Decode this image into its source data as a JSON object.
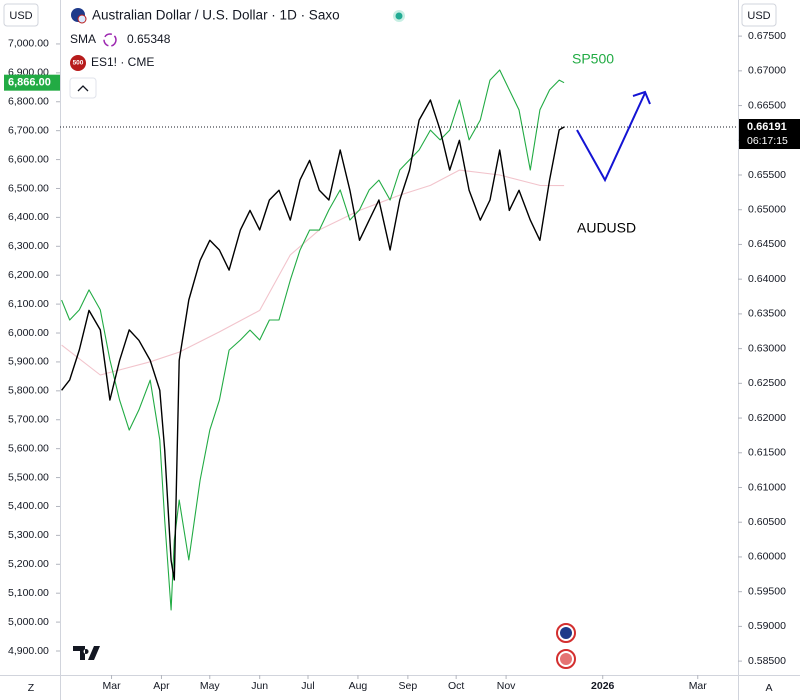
{
  "chart_data": {
    "type": "line",
    "title": "Australian Dollar / U.S. Dollar · 1D · Saxo",
    "y_unit": "USD",
    "y2_unit": "USD",
    "x": [
      29,
      34,
      40,
      46,
      53,
      59,
      65,
      71,
      77,
      84,
      90,
      93,
      97,
      99,
      102,
      108,
      115,
      121,
      127,
      133,
      140,
      146,
      152,
      158,
      164,
      171,
      177,
      183,
      189,
      195,
      202,
      208,
      214,
      220,
      226,
      233,
      239,
      245,
      251,
      258,
      264,
      270,
      276,
      282,
      289,
      295,
      301,
      307,
      313,
      320,
      326,
      332,
      338,
      341
    ],
    "xlim": [
      28,
      449
    ],
    "xticks": [
      {
        "value": 60,
        "label": "Mar"
      },
      {
        "value": 91,
        "label": "Apr"
      },
      {
        "value": 121,
        "label": "May"
      },
      {
        "value": 152,
        "label": "Jun"
      },
      {
        "value": 182,
        "label": "Jul"
      },
      {
        "value": 213,
        "label": "Aug"
      },
      {
        "value": 244,
        "label": "Sep"
      },
      {
        "value": 274,
        "label": "Oct"
      },
      {
        "value": 305,
        "label": "Nov"
      },
      {
        "value": 365,
        "label": "2026"
      },
      {
        "value": 424,
        "label": "Mar"
      }
    ],
    "ylim": [
      4817,
      7152
    ],
    "yticks": [
      {
        "value": 4900,
        "label": "4,900.00"
      },
      {
        "value": 5000,
        "label": "5,000.00"
      },
      {
        "value": 5100,
        "label": "5,100.00"
      },
      {
        "value": 5200,
        "label": "5,200.00"
      },
      {
        "value": 5300,
        "label": "5,300.00"
      },
      {
        "value": 5400,
        "label": "5,400.00"
      },
      {
        "value": 5500,
        "label": "5,500.00"
      },
      {
        "value": 5600,
        "label": "5,600.00"
      },
      {
        "value": 5700,
        "label": "5,700.00"
      },
      {
        "value": 5800,
        "label": "5,800.00"
      },
      {
        "value": 5900,
        "label": "5,900.00"
      },
      {
        "value": 6000,
        "label": "6,000.00"
      },
      {
        "value": 6100,
        "label": "6,100.00"
      },
      {
        "value": 6200,
        "label": "6,200.00"
      },
      {
        "value": 6300,
        "label": "6,300.00"
      },
      {
        "value": 6400,
        "label": "6,400.00"
      },
      {
        "value": 6500,
        "label": "6,500.00"
      },
      {
        "value": 6600,
        "label": "6,600.00"
      },
      {
        "value": 6700,
        "label": "6,700.00"
      },
      {
        "value": 6800,
        "label": "6,800.00"
      },
      {
        "value": 6900,
        "label": "6,900.00"
      },
      {
        "value": 7000,
        "label": "7,000.00"
      }
    ],
    "y2lim": [
      0.583,
      0.6802
    ],
    "y2ticks": [
      {
        "value": 0.585,
        "label": "0.58500"
      },
      {
        "value": 0.59,
        "label": "0.59000"
      },
      {
        "value": 0.595,
        "label": "0.59500"
      },
      {
        "value": 0.6,
        "label": "0.60000"
      },
      {
        "value": 0.605,
        "label": "0.60500"
      },
      {
        "value": 0.61,
        "label": "0.61000"
      },
      {
        "value": 0.615,
        "label": "0.61500"
      },
      {
        "value": 0.62,
        "label": "0.62000"
      },
      {
        "value": 0.625,
        "label": "0.62500"
      },
      {
        "value": 0.63,
        "label": "0.63000"
      },
      {
        "value": 0.635,
        "label": "0.63500"
      },
      {
        "value": 0.64,
        "label": "0.64000"
      },
      {
        "value": 0.645,
        "label": "0.64500"
      },
      {
        "value": 0.65,
        "label": "0.65000"
      },
      {
        "value": 0.655,
        "label": "0.65500"
      },
      {
        "value": 0.66,
        "label": "0.66000"
      },
      {
        "value": 0.665,
        "label": "0.66500"
      },
      {
        "value": 0.67,
        "label": "0.67000"
      },
      {
        "value": 0.675,
        "label": "0.67500"
      }
    ],
    "grid": false,
    "series": [
      {
        "name": "AUDUSD",
        "color": "#000000",
        "axis": "y2",
        "values": [
          0.624,
          0.6255,
          0.6298,
          0.6355,
          0.6327,
          0.6226,
          0.6283,
          0.6327,
          0.6312,
          0.6283,
          0.624,
          0.6154,
          0.5995,
          0.5967,
          0.6283,
          0.637,
          0.6427,
          0.6456,
          0.6442,
          0.6413,
          0.6471,
          0.6499,
          0.6471,
          0.6514,
          0.6528,
          0.6485,
          0.6543,
          0.6571,
          0.6528,
          0.6514,
          0.6586,
          0.6528,
          0.6456,
          0.6485,
          0.6514,
          0.6442,
          0.6514,
          0.6557,
          0.6629,
          0.6658,
          0.6615,
          0.6557,
          0.66,
          0.6528,
          0.6485,
          0.6514,
          0.6586,
          0.6499,
          0.6528,
          0.6485,
          0.6456,
          0.6543,
          0.6615,
          0.66191
        ]
      },
      {
        "name": "ES1! · CME",
        "color": "#22ab44",
        "values": [
          6114,
          6045,
          6080,
          6149,
          6080,
          5907,
          5768,
          5664,
          5734,
          5837,
          5630,
          5353,
          5042,
          5284,
          5422,
          5215,
          5491,
          5664,
          5768,
          5941,
          5976,
          6010,
          5976,
          6045,
          6045,
          6183,
          6287,
          6356,
          6356,
          6426,
          6495,
          6391,
          6426,
          6495,
          6529,
          6460,
          6564,
          6599,
          6633,
          6702,
          6668,
          6702,
          6806,
          6668,
          6737,
          6875,
          6910,
          6841,
          6772,
          6564,
          6772,
          6841,
          6875,
          6866
        ],
        "last_label": "6,866.00"
      },
      {
        "name": "SMA",
        "color": "#f2c4cc",
        "axis": "y2",
        "x": [
          29,
          53,
          84,
          102,
          127,
          152,
          171,
          189,
          214,
          239,
          258,
          276,
          301,
          326,
          341
        ],
        "values": [
          0.6305,
          0.6262,
          0.6281,
          0.6295,
          0.6324,
          0.6355,
          0.6435,
          0.6471,
          0.6499,
          0.6521,
          0.6535,
          0.6557,
          0.655,
          0.6535,
          0.65348
        ]
      }
    ],
    "annotations": [
      "SP500"
    ],
    "countdown": "06:17:15",
    "es_icon": "500",
    "bottom_left_button": "Z",
    "bottom_right_button": "A"
  }
}
